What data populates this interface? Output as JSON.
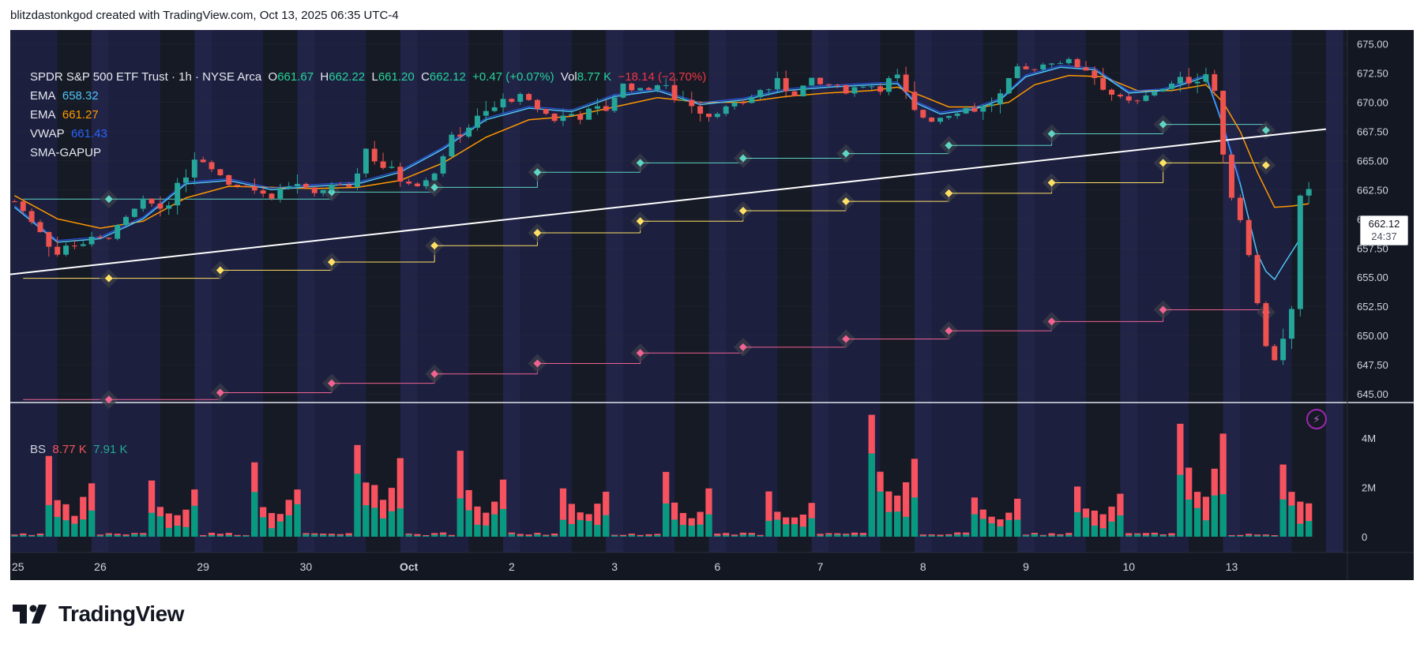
{
  "credit": "blitzdastonkgod created with TradingView.com, Oct 13, 2025 06:35 UTC-4",
  "legend": {
    "symbol": "SPDR S&P 500 ETF Trust · 1h · NYSE Arca",
    "o_label": "O",
    "o": "661.67",
    "h_label": "H",
    "h": "662.22",
    "l_label": "L",
    "l": "661.20",
    "c_label": "C",
    "c": "662.12",
    "change": "+0.47 (+0.07%)",
    "vol_label": "Vol",
    "vol": "8.77 K",
    "vol_change": "−18.14 (−2.70%)",
    "ema1_label": "EMA",
    "ema1": "658.32",
    "ema2_label": "EMA",
    "ema2": "661.27",
    "vwap_label": "VWAP",
    "vwap": "661.43",
    "sma_label": "SMA-GAPUP"
  },
  "bs_legend": {
    "label": "BS",
    "sell": "8.77 K",
    "buy": "7.91 K"
  },
  "price_tag": {
    "price": "662.12",
    "countdown": "24:37"
  },
  "logo_text": "TradingView",
  "colors": {
    "up": "#26a69a",
    "down": "#ef5350",
    "ema_fast": "#4fc3f7",
    "ema_slow": "#ff9800",
    "vwap": "#2962ff",
    "pivot_r": "#5fd4c4",
    "pivot_p": "#ffe066",
    "pivot_s": "#f06292",
    "sell_vol": "#f7525f",
    "buy_vol": "#089981"
  },
  "chart_data": {
    "type": "candlestick",
    "price_axis": {
      "ticks": [
        "675.00",
        "672.50",
        "670.00",
        "667.50",
        "665.00",
        "662.50",
        "660.00",
        "657.50",
        "655.00",
        "652.50",
        "650.00",
        "647.50",
        "645.00"
      ],
      "ylim": [
        644.25,
        676.2
      ]
    },
    "volume_axis": {
      "ticks": [
        "4M",
        "2M",
        "0"
      ],
      "ylim": [
        0,
        5400000
      ]
    },
    "x_labels": [
      "25",
      "26",
      "29",
      "30",
      "Oct",
      "2",
      "3",
      "6",
      "7",
      "8",
      "9",
      "10",
      "13"
    ],
    "close_path": [
      [
        0,
        661.5
      ],
      [
        3,
        659
      ],
      [
        5,
        657
      ],
      [
        7,
        658
      ],
      [
        9,
        658
      ],
      [
        11,
        658.5
      ],
      [
        13,
        660
      ],
      [
        15,
        661.5
      ],
      [
        17,
        661
      ],
      [
        19,
        662.5
      ],
      [
        21,
        665.5
      ],
      [
        23,
        664.5
      ],
      [
        25,
        663
      ],
      [
        27,
        663
      ],
      [
        29,
        662
      ],
      [
        31,
        662.5
      ],
      [
        33,
        663
      ],
      [
        35,
        662
      ],
      [
        37,
        663
      ],
      [
        39,
        662.5
      ],
      [
        41,
        666
      ],
      [
        43,
        664.5
      ],
      [
        45,
        663.5
      ],
      [
        47,
        663
      ],
      [
        49,
        664
      ],
      [
        51,
        667
      ],
      [
        53,
        668
      ],
      [
        55,
        669
      ],
      [
        57,
        670
      ],
      [
        59,
        670.5
      ],
      [
        61,
        669.5
      ],
      [
        63,
        668.5
      ],
      [
        65,
        669
      ],
      [
        67,
        669
      ],
      [
        69,
        669.5
      ],
      [
        71,
        671.5
      ],
      [
        73,
        671
      ],
      [
        75,
        671.5
      ],
      [
        77,
        670.5
      ],
      [
        79,
        670
      ],
      [
        81,
        669
      ],
      [
        83,
        669.5
      ],
      [
        85,
        670
      ],
      [
        87,
        671
      ],
      [
        89,
        671.5
      ],
      [
        91,
        671
      ],
      [
        93,
        671.5
      ],
      [
        95,
        671.5
      ],
      [
        97,
        671
      ],
      [
        99,
        671.5
      ],
      [
        101,
        671.5
      ],
      [
        103,
        672
      ],
      [
        105,
        669
      ],
      [
        107,
        668.5
      ],
      [
        109,
        669
      ],
      [
        111,
        669.5
      ],
      [
        113,
        669.5
      ],
      [
        115,
        670.5
      ],
      [
        117,
        672.5
      ],
      [
        119,
        673
      ],
      [
        121,
        673.5
      ],
      [
        123,
        673.5
      ],
      [
        125,
        673
      ],
      [
        127,
        671.5
      ],
      [
        129,
        670
      ],
      [
        131,
        670
      ],
      [
        133,
        671
      ],
      [
        135,
        671.5
      ],
      [
        137,
        672
      ],
      [
        139,
        672.5
      ],
      [
        140,
        671
      ],
      [
        141,
        665
      ],
      [
        142,
        662
      ],
      [
        143,
        660
      ],
      [
        144,
        657
      ],
      [
        145,
        653
      ],
      [
        146,
        649
      ],
      [
        147,
        648
      ],
      [
        148,
        650
      ],
      [
        149,
        652
      ],
      [
        150,
        661.5
      ],
      [
        151,
        662.1
      ]
    ],
    "ema_fast": [
      [
        0,
        661
      ],
      [
        5,
        658
      ],
      [
        10,
        658.3
      ],
      [
        15,
        660
      ],
      [
        20,
        663
      ],
      [
        25,
        663.3
      ],
      [
        30,
        662.5
      ],
      [
        35,
        662.8
      ],
      [
        40,
        663
      ],
      [
        45,
        664
      ],
      [
        50,
        666
      ],
      [
        55,
        668.5
      ],
      [
        60,
        669.5
      ],
      [
        65,
        669.2
      ],
      [
        70,
        670.5
      ],
      [
        75,
        671
      ],
      [
        80,
        669.8
      ],
      [
        85,
        670.2
      ],
      [
        90,
        671
      ],
      [
        95,
        671.3
      ],
      [
        100,
        671.5
      ],
      [
        103,
        671.6
      ],
      [
        105,
        670
      ],
      [
        108,
        669
      ],
      [
        112,
        669.4
      ],
      [
        115,
        670.2
      ],
      [
        118,
        672.2
      ],
      [
        122,
        673
      ],
      [
        126,
        672.8
      ],
      [
        130,
        670.8
      ],
      [
        134,
        671
      ],
      [
        137,
        671.7
      ],
      [
        139,
        672.2
      ],
      [
        141,
        668
      ],
      [
        143,
        663
      ],
      [
        145,
        657
      ],
      [
        146,
        655.5
      ],
      [
        147,
        654.8
      ],
      [
        148,
        656
      ],
      [
        150,
        658.3
      ]
    ],
    "ema_slow": [
      [
        0,
        662
      ],
      [
        5,
        660
      ],
      [
        10,
        659.2
      ],
      [
        15,
        659.8
      ],
      [
        20,
        661.8
      ],
      [
        25,
        662.8
      ],
      [
        30,
        662.7
      ],
      [
        35,
        662.6
      ],
      [
        40,
        662.7
      ],
      [
        45,
        663.3
      ],
      [
        50,
        664.8
      ],
      [
        55,
        667
      ],
      [
        60,
        668.5
      ],
      [
        65,
        668.8
      ],
      [
        70,
        669.6
      ],
      [
        75,
        670.4
      ],
      [
        80,
        670
      ],
      [
        85,
        670
      ],
      [
        90,
        670.5
      ],
      [
        95,
        670.8
      ],
      [
        100,
        671
      ],
      [
        103,
        671.3
      ],
      [
        106,
        670.5
      ],
      [
        109,
        669.6
      ],
      [
        113,
        669.6
      ],
      [
        116,
        670
      ],
      [
        119,
        671.5
      ],
      [
        123,
        672.3
      ],
      [
        127,
        672.2
      ],
      [
        131,
        671
      ],
      [
        135,
        671
      ],
      [
        139,
        671.5
      ],
      [
        141,
        670
      ],
      [
        143,
        667.5
      ],
      [
        145,
        664
      ],
      [
        147,
        661
      ],
      [
        149,
        661.1
      ],
      [
        151,
        661.3
      ]
    ],
    "trendline": {
      "start": [
        -1,
        655.2
      ],
      "end": [
        153,
        667.7
      ]
    },
    "pivots": {
      "r": [
        [
          11,
          661.7
        ],
        [
          37,
          662.3
        ],
        [
          49,
          662.7
        ],
        [
          61,
          664
        ],
        [
          73,
          664.8
        ],
        [
          85,
          665.2
        ],
        [
          97,
          665.6
        ],
        [
          109,
          666.3
        ],
        [
          121,
          667.3
        ],
        [
          134,
          668.1
        ],
        [
          146,
          667.6
        ]
      ],
      "p": [
        [
          11,
          654.9
        ],
        [
          24,
          655.6
        ],
        [
          37,
          656.3
        ],
        [
          49,
          657.7
        ],
        [
          61,
          658.8
        ],
        [
          73,
          659.8
        ],
        [
          85,
          660.7
        ],
        [
          97,
          661.5
        ],
        [
          109,
          662.2
        ],
        [
          121,
          663.1
        ],
        [
          134,
          664.8
        ],
        [
          146,
          664.6
        ]
      ],
      "s": [
        [
          11,
          644.5
        ],
        [
          24,
          645.1
        ],
        [
          37,
          645.9
        ],
        [
          49,
          646.7
        ],
        [
          61,
          647.6
        ],
        [
          73,
          648.5
        ],
        [
          85,
          649
        ],
        [
          97,
          649.7
        ],
        [
          109,
          650.4
        ],
        [
          121,
          651.2
        ],
        [
          134,
          652.2
        ],
        [
          146,
          652
        ]
      ]
    },
    "volume_peaks_millions": [
      3.0,
      2.6,
      2.8,
      4.9,
      3.2,
      2.5,
      2.6,
      2.2,
      4.6,
      2.0,
      2.5,
      5.1,
      3.6
    ]
  }
}
